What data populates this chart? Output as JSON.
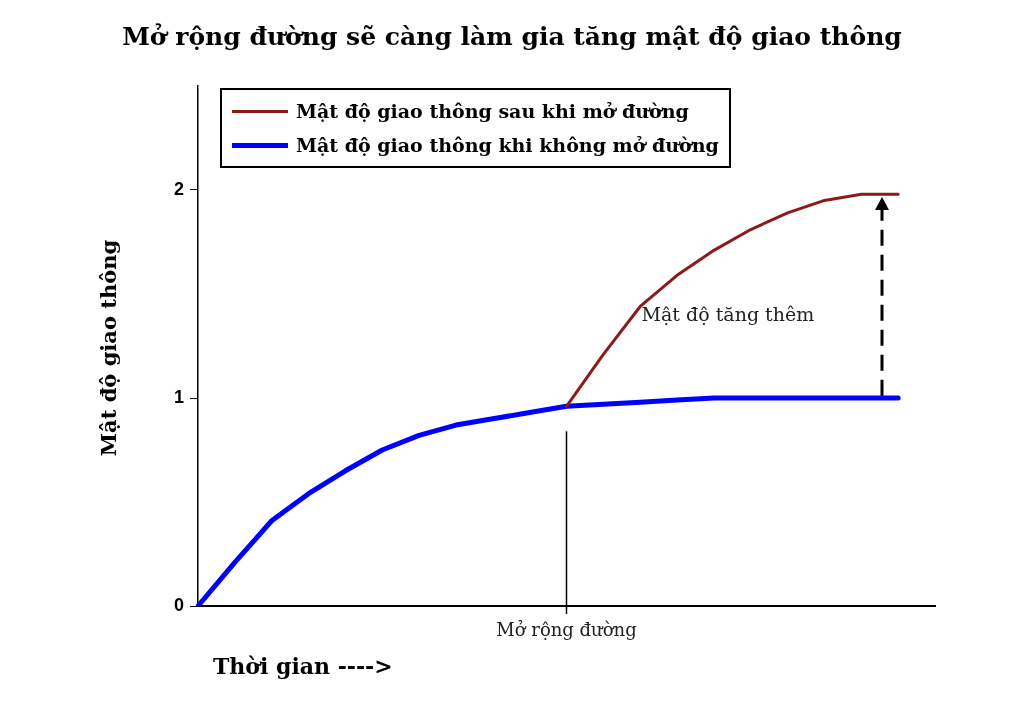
{
  "chart_data": {
    "type": "line",
    "title": "Mở rộng đường sẽ càng làm gia tăng mật độ giao thông",
    "xlabel": "Thời gian ---->",
    "ylabel": "Mật độ giao thông",
    "categories": [
      null,
      null,
      null,
      null,
      null,
      null,
      null,
      null,
      null,
      null,
      null,
      null,
      null,
      null,
      null,
      null,
      null,
      null,
      null,
      null,
      null
    ],
    "ylim": [
      0,
      2.5
    ],
    "yticks": [
      0,
      1,
      2
    ],
    "legend": "top left",
    "marker": "none",
    "series": [
      {
        "name": "Mật độ giao thông sau khi mở đường",
        "color": "#8b1a1a",
        "values": [
          null,
          null,
          null,
          null,
          null,
          null,
          null,
          null,
          null,
          null,
          0.96,
          1.21,
          1.44,
          1.59,
          1.71,
          1.81,
          1.89,
          1.95,
          1.98,
          1.98,
          null
        ]
      },
      {
        "name": "Mật độ giao thông khi không mở đường",
        "color": "#0000ff",
        "values": [
          0,
          0.21,
          0.41,
          0.54,
          0.65,
          0.75,
          0.82,
          0.87,
          0.9,
          0.93,
          0.96,
          0.97,
          0.98,
          0.99,
          1,
          1,
          1,
          1,
          1,
          1,
          null
        ]
      }
    ],
    "annotations": [
      "Mở rộng đường",
      "Mật độ tăng thêm"
    ]
  }
}
